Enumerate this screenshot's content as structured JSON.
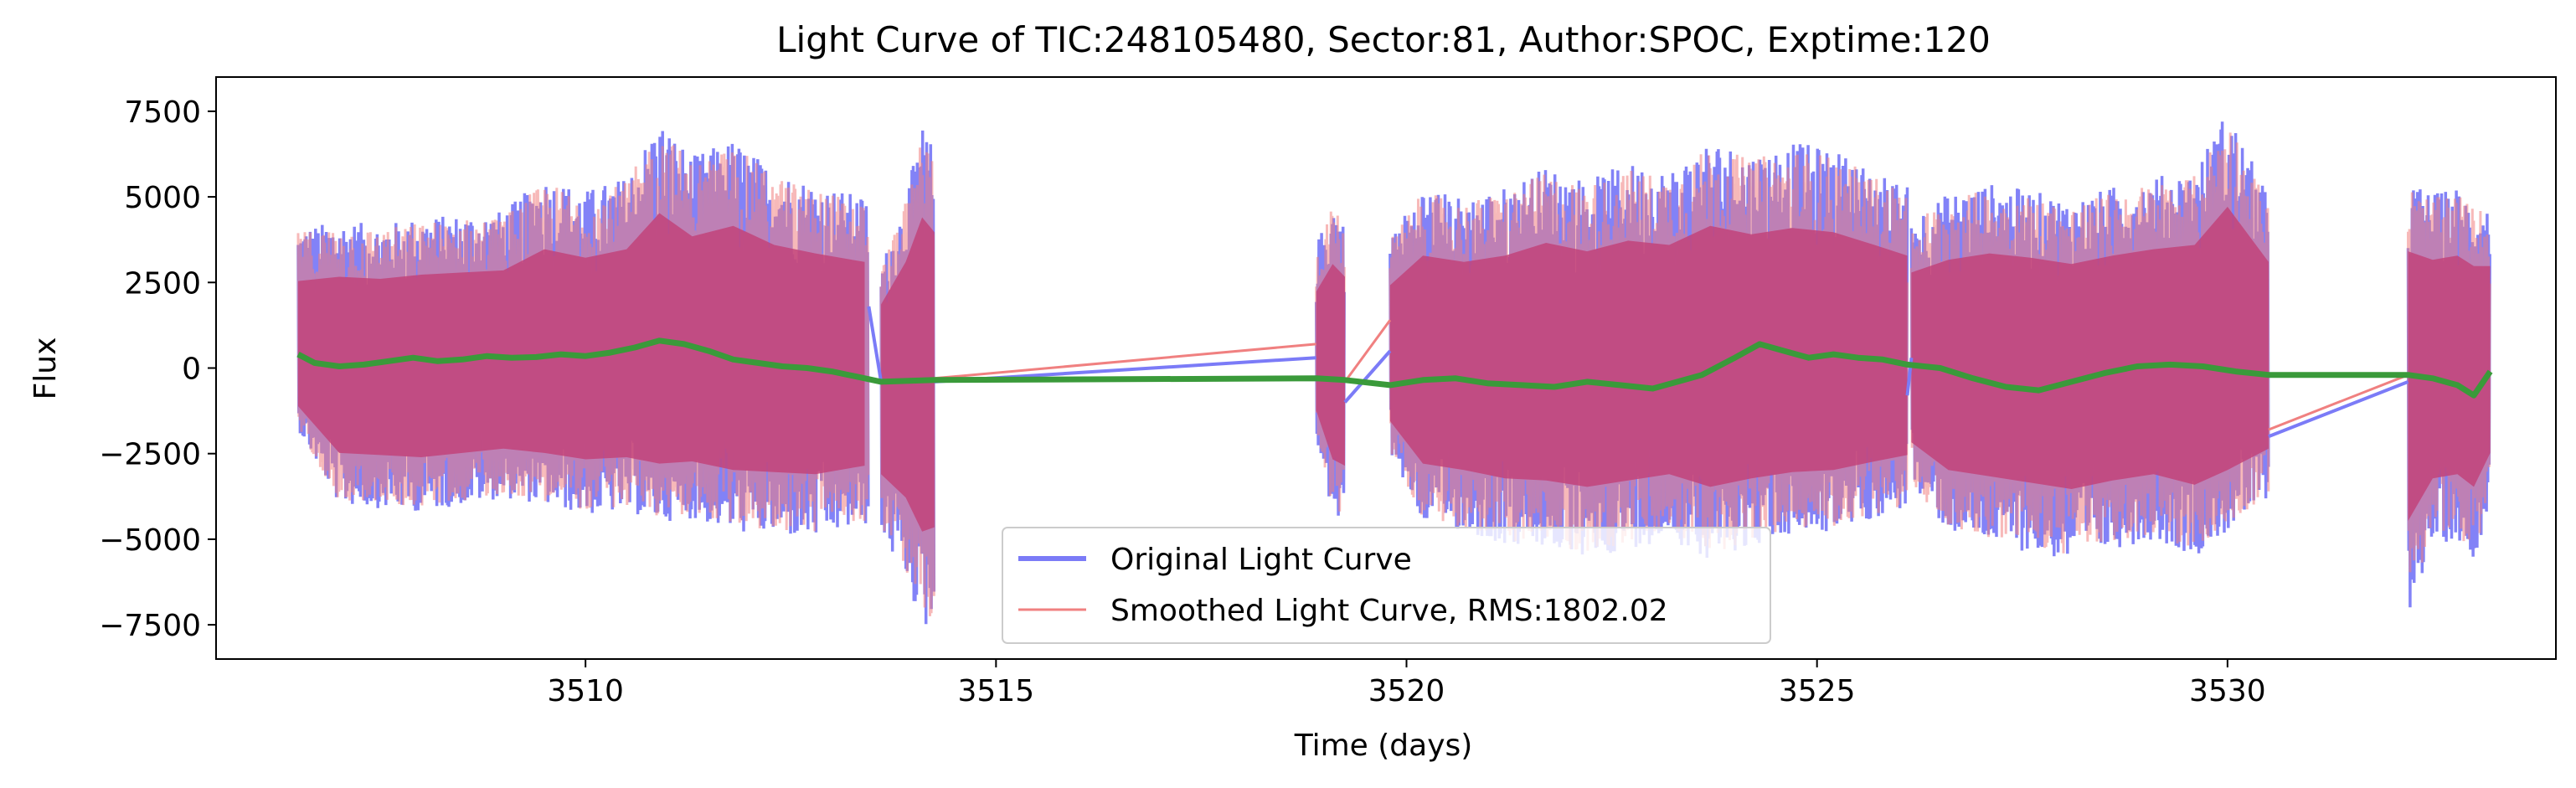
{
  "chart_data": {
    "type": "line",
    "title": "Light Curve of TIC:248105480, Sector:81, Author:SPOC, Exptime:120",
    "xlabel": "Time (days)",
    "ylabel": "Flux",
    "xlim": [
      3505.5,
      3534.0
    ],
    "ylim": [
      -8500,
      8500
    ],
    "xticks": [
      3510,
      3515,
      3520,
      3525,
      3530
    ],
    "yticks": [
      7500,
      5000,
      2500,
      0,
      -2500,
      -5000,
      -7500
    ],
    "xtick_labels": [
      "3510",
      "3515",
      "3520",
      "3525",
      "3530"
    ],
    "ytick_labels": [
      "7500",
      "5000",
      "2500",
      "0",
      "−2500",
      "−5000",
      "−7500"
    ],
    "grid": false,
    "legend_position": "lower-center",
    "colors": {
      "original": "#7b7bf7",
      "smoothed": "#f08080",
      "overlap": "#c2437a",
      "trend": "#3a9a3a"
    },
    "segments": [
      {
        "start": 3506.5,
        "end": 3513.45,
        "envelope": [
          [
            3506.5,
            4100,
            -1800
          ],
          [
            3507.0,
            4300,
            -4000
          ],
          [
            3507.5,
            4200,
            -4100
          ],
          [
            3508.0,
            4400,
            -4200
          ],
          [
            3508.5,
            4500,
            -4000
          ],
          [
            3509.0,
            4600,
            -3800
          ],
          [
            3509.5,
            5600,
            -4000
          ],
          [
            3510.0,
            5200,
            -4300
          ],
          [
            3510.5,
            5600,
            -4200
          ],
          [
            3510.9,
            7300,
            -4500
          ],
          [
            3511.3,
            6200,
            -4400
          ],
          [
            3511.8,
            6700,
            -4800
          ],
          [
            3512.3,
            5800,
            -4900
          ],
          [
            3512.8,
            5400,
            -5000
          ],
          [
            3513.4,
            5000,
            -4600
          ]
        ]
      },
      {
        "start": 3513.6,
        "end": 3514.25,
        "envelope": [
          [
            3513.6,
            3000,
            -5000
          ],
          [
            3513.9,
            5000,
            -6100
          ],
          [
            3514.1,
            7100,
            -7700
          ],
          [
            3514.25,
            6400,
            -7500
          ]
        ]
      },
      {
        "start": 3518.9,
        "end": 3519.25,
        "envelope": [
          [
            3518.9,
            3600,
            -2000
          ],
          [
            3519.1,
            4900,
            -4300
          ],
          [
            3519.25,
            4300,
            -4600
          ]
        ]
      },
      {
        "start": 3519.8,
        "end": 3526.1,
        "envelope": [
          [
            3519.8,
            3900,
            -2500
          ],
          [
            3520.2,
            5300,
            -4500
          ],
          [
            3520.7,
            5000,
            -4800
          ],
          [
            3521.2,
            5300,
            -5200
          ],
          [
            3521.7,
            5900,
            -5300
          ],
          [
            3522.2,
            5500,
            -5600
          ],
          [
            3522.7,
            6000,
            -5300
          ],
          [
            3523.2,
            5800,
            -5000
          ],
          [
            3523.7,
            6700,
            -5600
          ],
          [
            3524.2,
            6300,
            -5200
          ],
          [
            3524.7,
            6600,
            -4900
          ],
          [
            3525.2,
            6400,
            -4800
          ],
          [
            3525.7,
            5800,
            -4400
          ],
          [
            3526.1,
            5300,
            -4100
          ]
        ]
      },
      {
        "start": 3526.15,
        "end": 3530.5,
        "envelope": [
          [
            3526.15,
            4500,
            -3500
          ],
          [
            3526.6,
            5100,
            -4800
          ],
          [
            3527.1,
            5400,
            -5100
          ],
          [
            3527.6,
            5200,
            -5400
          ],
          [
            3528.1,
            4900,
            -5700
          ],
          [
            3528.6,
            5300,
            -5300
          ],
          [
            3529.1,
            5600,
            -5000
          ],
          [
            3529.6,
            5800,
            -5500
          ],
          [
            3530.0,
            7600,
            -4800
          ],
          [
            3530.5,
            5000,
            -3800
          ]
        ]
      },
      {
        "start": 3532.2,
        "end": 3533.2,
        "envelope": [
          [
            3532.2,
            5500,
            -7200
          ],
          [
            3532.5,
            5100,
            -5200
          ],
          [
            3532.8,
            5300,
            -5000
          ],
          [
            3533.0,
            4800,
            -5600
          ],
          [
            3533.2,
            4800,
            -4000
          ]
        ]
      }
    ],
    "connectors": {
      "original": [
        [
          3513.45,
          1800,
          3513.6,
          -400
        ],
        [
          3514.25,
          -400,
          3518.9,
          300
        ],
        [
          3519.25,
          -1000,
          3519.8,
          500
        ],
        [
          3526.1,
          -800,
          3526.15,
          300
        ],
        [
          3530.5,
          -2000,
          3532.2,
          -400
        ]
      ],
      "smoothed": [
        [
          3514.25,
          -300,
          3518.9,
          700
        ],
        [
          3519.25,
          -400,
          3519.8,
          1400
        ],
        [
          3530.5,
          -1800,
          3532.2,
          -200
        ]
      ]
    },
    "series": [
      {
        "name": "Original Light Curve",
        "style": "line"
      },
      {
        "name": "Smoothed Light Curve, RMS:1802.02",
        "style": "line"
      },
      {
        "name": "",
        "style": "trend",
        "points": [
          [
            3506.5,
            400
          ],
          [
            3506.7,
            150
          ],
          [
            3507.0,
            50
          ],
          [
            3507.3,
            100
          ],
          [
            3507.6,
            200
          ],
          [
            3507.9,
            300
          ],
          [
            3508.2,
            200
          ],
          [
            3508.5,
            250
          ],
          [
            3508.8,
            350
          ],
          [
            3509.1,
            300
          ],
          [
            3509.4,
            320
          ],
          [
            3509.7,
            400
          ],
          [
            3510.0,
            350
          ],
          [
            3510.3,
            450
          ],
          [
            3510.6,
            600
          ],
          [
            3510.9,
            800
          ],
          [
            3511.2,
            700
          ],
          [
            3511.5,
            500
          ],
          [
            3511.8,
            250
          ],
          [
            3512.1,
            150
          ],
          [
            3512.4,
            50
          ],
          [
            3512.7,
            0
          ],
          [
            3513.0,
            -100
          ],
          [
            3513.3,
            -250
          ],
          [
            3513.6,
            -400
          ],
          [
            3514.25,
            -350
          ],
          [
            3518.9,
            -300
          ],
          [
            3519.25,
            -350
          ],
          [
            3519.8,
            -500
          ],
          [
            3520.2,
            -350
          ],
          [
            3520.6,
            -300
          ],
          [
            3521.0,
            -450
          ],
          [
            3521.4,
            -500
          ],
          [
            3521.8,
            -550
          ],
          [
            3522.2,
            -400
          ],
          [
            3522.6,
            -500
          ],
          [
            3523.0,
            -600
          ],
          [
            3523.3,
            -400
          ],
          [
            3523.6,
            -200
          ],
          [
            3524.0,
            300
          ],
          [
            3524.3,
            700
          ],
          [
            3524.6,
            500
          ],
          [
            3524.9,
            300
          ],
          [
            3525.2,
            400
          ],
          [
            3525.5,
            300
          ],
          [
            3525.8,
            250
          ],
          [
            3526.1,
            100
          ],
          [
            3526.5,
            0
          ],
          [
            3526.9,
            -300
          ],
          [
            3527.3,
            -550
          ],
          [
            3527.7,
            -650
          ],
          [
            3528.1,
            -400
          ],
          [
            3528.5,
            -150
          ],
          [
            3528.9,
            50
          ],
          [
            3529.3,
            100
          ],
          [
            3529.7,
            50
          ],
          [
            3530.1,
            -100
          ],
          [
            3530.5,
            -200
          ],
          [
            3532.2,
            -200
          ],
          [
            3532.5,
            -300
          ],
          [
            3532.8,
            -500
          ],
          [
            3533.0,
            -800
          ],
          [
            3533.2,
            -100
          ]
        ]
      }
    ]
  }
}
